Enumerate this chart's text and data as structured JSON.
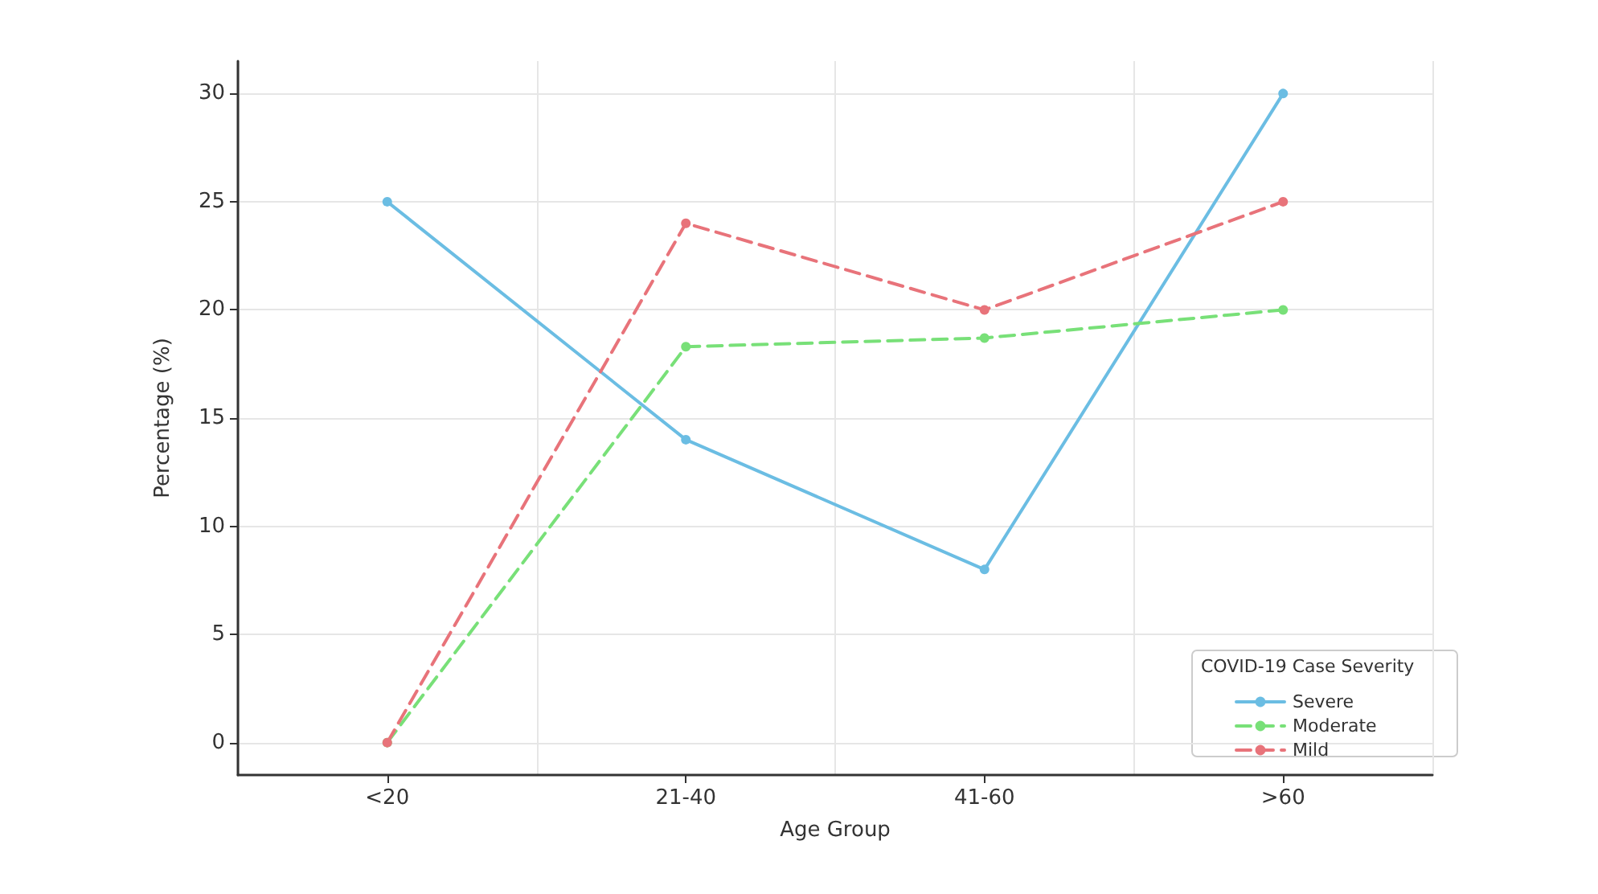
{
  "chart_data": {
    "type": "line",
    "xlabel": "Age Group",
    "ylabel": "Percentage (%)",
    "legend_title": "COVID-19 Case Severity",
    "categories": [
      "<20",
      "21-40",
      "41-60",
      ">60"
    ],
    "series": [
      {
        "name": "Severe",
        "color": "#6bbde3",
        "values": [
          25,
          14,
          8,
          30
        ],
        "line_style": "solid"
      },
      {
        "name": "Moderate",
        "color": "#78e078",
        "values": [
          0,
          18.3,
          18.7,
          20
        ],
        "line_style": "dashed"
      },
      {
        "name": "Mild",
        "color": "#e8737a",
        "values": [
          0,
          24,
          20,
          25
        ],
        "line_style": "dashed"
      }
    ],
    "ylim": [
      -1.5,
      31.5
    ],
    "yticks": [
      0,
      5,
      10,
      15,
      20,
      25,
      30
    ],
    "grid": true,
    "legend": "bottom right",
    "marker": "circle"
  }
}
